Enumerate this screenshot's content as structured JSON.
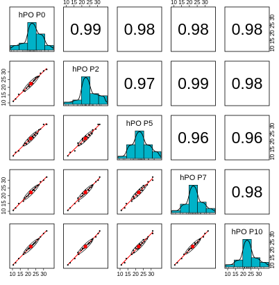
{
  "chart_data": {
    "type": "scatter-matrix",
    "variables": [
      "hPO P0",
      "hPO P2",
      "hPO P5",
      "hPO P7",
      "hPO P10"
    ],
    "axis_range": [
      10,
      35
    ],
    "axis_ticks": [
      "10",
      "15",
      "20",
      "25",
      "30"
    ],
    "correlations": [
      {
        "row": 0,
        "col": 1,
        "label": "0.99"
      },
      {
        "row": 0,
        "col": 2,
        "label": "0.98"
      },
      {
        "row": 0,
        "col": 3,
        "label": "0.98"
      },
      {
        "row": 0,
        "col": 4,
        "label": "0.98"
      },
      {
        "row": 1,
        "col": 2,
        "label": "0.97"
      },
      {
        "row": 1,
        "col": 3,
        "label": "0.99"
      },
      {
        "row": 1,
        "col": 4,
        "label": "0.98"
      },
      {
        "row": 2,
        "col": 3,
        "label": "0.96"
      },
      {
        "row": 2,
        "col": 4,
        "label": "0.96"
      },
      {
        "row": 3,
        "col": 4,
        "label": "0.98"
      }
    ],
    "histogram_bins": [
      10,
      15,
      20,
      25,
      30,
      35
    ],
    "histograms": [
      {
        "variable": "hPO P0",
        "counts": [
          2,
          3,
          12,
          7,
          2
        ]
      },
      {
        "variable": "hPO P2",
        "counts": [
          1,
          2,
          13,
          5,
          4
        ]
      },
      {
        "variable": "hPO P5",
        "counts": [
          1,
          6,
          12,
          6,
          3
        ]
      },
      {
        "variable": "hPO P7",
        "counts": [
          1,
          4,
          13,
          5,
          2
        ]
      },
      {
        "variable": "hPO P10",
        "counts": [
          1,
          3,
          12,
          4,
          2
        ]
      }
    ],
    "point_values": [
      [
        10.5,
        11.0,
        10.8,
        10.6,
        10.4
      ],
      [
        12.0,
        12.5,
        13.0,
        12.2,
        11.8
      ],
      [
        14.0,
        15.5,
        14.0,
        15.0,
        14.5
      ],
      [
        17.0,
        18.0,
        17.5,
        16.5,
        17.2
      ],
      [
        18.0,
        17.5,
        19.0,
        18.5,
        18.4
      ],
      [
        19.0,
        19.5,
        18.5,
        19.5,
        19.8
      ],
      [
        20.0,
        20.5,
        21.0,
        20.0,
        20.6
      ],
      [
        20.5,
        21.5,
        20.0,
        21.0,
        21.2
      ],
      [
        21.0,
        20.5,
        22.0,
        21.5,
        21.0
      ],
      [
        21.5,
        22.0,
        21.0,
        22.0,
        22.2
      ],
      [
        22.0,
        22.5,
        22.5,
        22.5,
        22.4
      ],
      [
        22.5,
        23.0,
        23.0,
        22.0,
        23.0
      ],
      [
        23.0,
        22.5,
        23.5,
        23.5,
        23.2
      ],
      [
        23.5,
        24.0,
        22.5,
        24.0,
        23.8
      ],
      [
        24.0,
        24.5,
        24.5,
        23.5,
        24.4
      ],
      [
        24.5,
        25.0,
        24.0,
        25.0,
        24.6
      ],
      [
        25.0,
        26.0,
        25.5,
        25.5,
        25.4
      ],
      [
        26.0,
        26.5,
        25.0,
        26.5,
        26.6
      ],
      [
        27.0,
        27.0,
        27.5,
        27.0,
        27.2
      ],
      [
        28.0,
        29.0,
        28.0,
        29.0,
        28.4
      ],
      [
        30.0,
        30.5,
        31.0,
        30.0,
        30.6
      ],
      [
        32.0,
        31.5,
        31.0,
        32.0,
        32.2
      ]
    ],
    "colors": {
      "histogram_fill": "#00b2c8",
      "fit_line": "#ff0000",
      "points": "#000000",
      "density": "#000000",
      "panel_border": "#000000"
    },
    "grid": false
  }
}
